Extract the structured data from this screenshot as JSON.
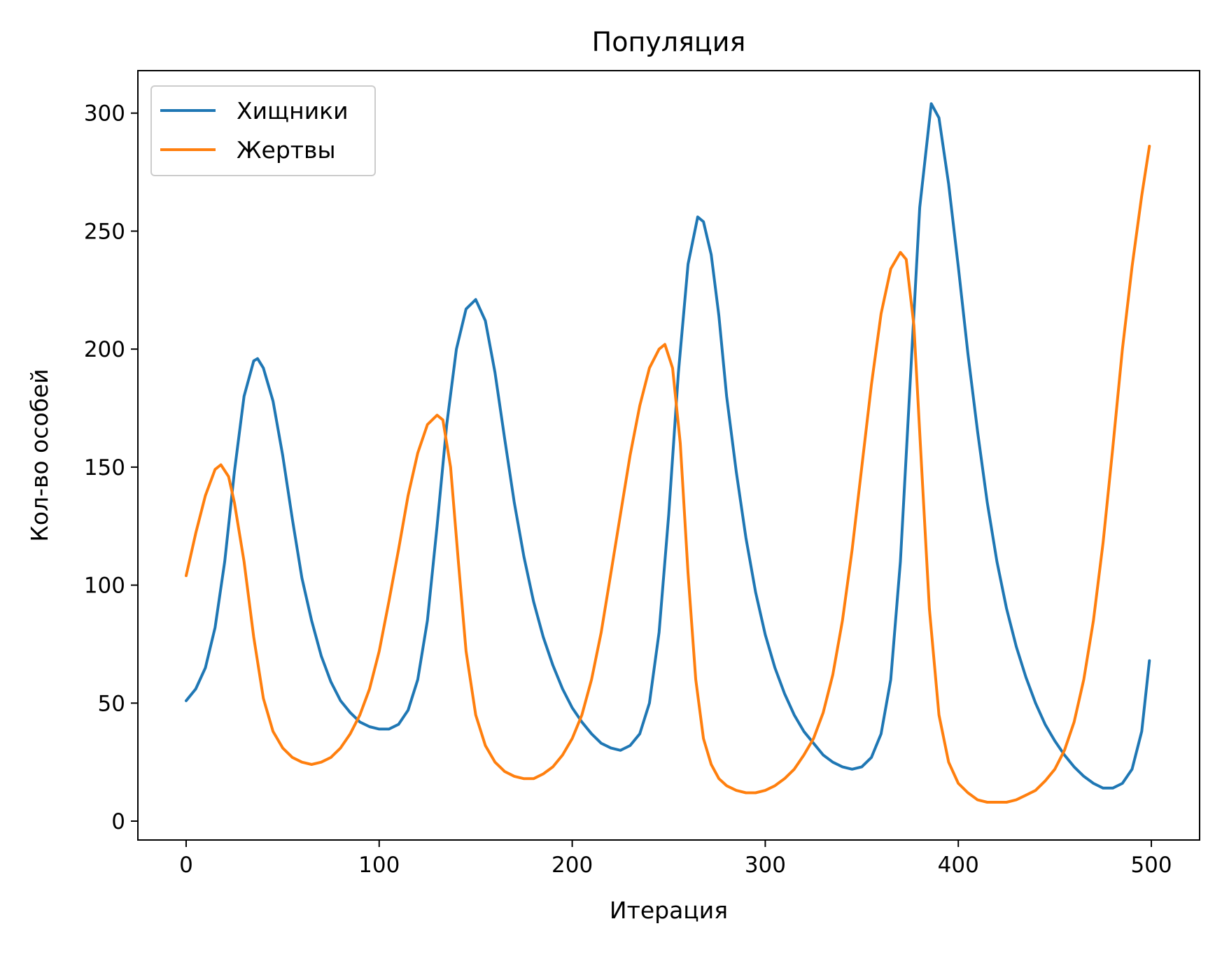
{
  "chart_data": {
    "type": "line",
    "title": "Популяция",
    "xlabel": "Итерация",
    "ylabel": "Кол-во особей",
    "xlim": [
      -25,
      525
    ],
    "ylim": [
      -8,
      318
    ],
    "xticks": [
      0,
      100,
      200,
      300,
      400,
      500
    ],
    "yticks": [
      0,
      50,
      100,
      150,
      200,
      250,
      300
    ],
    "grid": false,
    "legend_position": "upper-left",
    "series": [
      {
        "name": "Хищники",
        "color": "#1f77b4",
        "points": [
          [
            0,
            51
          ],
          [
            5,
            56
          ],
          [
            10,
            65
          ],
          [
            15,
            82
          ],
          [
            20,
            110
          ],
          [
            25,
            148
          ],
          [
            30,
            180
          ],
          [
            35,
            195
          ],
          [
            37,
            196
          ],
          [
            40,
            192
          ],
          [
            45,
            178
          ],
          [
            50,
            155
          ],
          [
            55,
            128
          ],
          [
            60,
            103
          ],
          [
            65,
            85
          ],
          [
            70,
            70
          ],
          [
            75,
            59
          ],
          [
            80,
            51
          ],
          [
            85,
            46
          ],
          [
            90,
            42
          ],
          [
            95,
            40
          ],
          [
            100,
            39
          ],
          [
            105,
            39
          ],
          [
            110,
            41
          ],
          [
            115,
            47
          ],
          [
            120,
            60
          ],
          [
            125,
            85
          ],
          [
            130,
            125
          ],
          [
            135,
            168
          ],
          [
            140,
            200
          ],
          [
            145,
            217
          ],
          [
            150,
            221
          ],
          [
            155,
            212
          ],
          [
            160,
            190
          ],
          [
            165,
            162
          ],
          [
            170,
            135
          ],
          [
            175,
            112
          ],
          [
            180,
            93
          ],
          [
            185,
            78
          ],
          [
            190,
            66
          ],
          [
            195,
            56
          ],
          [
            200,
            48
          ],
          [
            205,
            42
          ],
          [
            210,
            37
          ],
          [
            215,
            33
          ],
          [
            220,
            31
          ],
          [
            225,
            30
          ],
          [
            230,
            32
          ],
          [
            235,
            37
          ],
          [
            240,
            50
          ],
          [
            245,
            80
          ],
          [
            250,
            130
          ],
          [
            255,
            190
          ],
          [
            260,
            236
          ],
          [
            265,
            256
          ],
          [
            268,
            254
          ],
          [
            272,
            240
          ],
          [
            276,
            214
          ],
          [
            280,
            180
          ],
          [
            285,
            148
          ],
          [
            290,
            120
          ],
          [
            295,
            97
          ],
          [
            300,
            79
          ],
          [
            305,
            65
          ],
          [
            310,
            54
          ],
          [
            315,
            45
          ],
          [
            320,
            38
          ],
          [
            325,
            33
          ],
          [
            330,
            28
          ],
          [
            335,
            25
          ],
          [
            340,
            23
          ],
          [
            345,
            22
          ],
          [
            350,
            23
          ],
          [
            355,
            27
          ],
          [
            360,
            37
          ],
          [
            365,
            60
          ],
          [
            370,
            110
          ],
          [
            375,
            185
          ],
          [
            380,
            260
          ],
          [
            386,
            304
          ],
          [
            390,
            298
          ],
          [
            395,
            270
          ],
          [
            400,
            235
          ],
          [
            405,
            198
          ],
          [
            410,
            165
          ],
          [
            415,
            135
          ],
          [
            420,
            110
          ],
          [
            425,
            90
          ],
          [
            430,
            74
          ],
          [
            435,
            61
          ],
          [
            440,
            50
          ],
          [
            445,
            41
          ],
          [
            450,
            34
          ],
          [
            455,
            28
          ],
          [
            460,
            23
          ],
          [
            465,
            19
          ],
          [
            470,
            16
          ],
          [
            475,
            14
          ],
          [
            480,
            14
          ],
          [
            485,
            16
          ],
          [
            490,
            22
          ],
          [
            495,
            38
          ],
          [
            499,
            68
          ]
        ]
      },
      {
        "name": "Жертвы",
        "color": "#ff7f0e",
        "points": [
          [
            0,
            104
          ],
          [
            5,
            122
          ],
          [
            10,
            138
          ],
          [
            15,
            149
          ],
          [
            18,
            151
          ],
          [
            22,
            146
          ],
          [
            25,
            135
          ],
          [
            30,
            110
          ],
          [
            35,
            78
          ],
          [
            40,
            52
          ],
          [
            45,
            38
          ],
          [
            50,
            31
          ],
          [
            55,
            27
          ],
          [
            60,
            25
          ],
          [
            65,
            24
          ],
          [
            70,
            25
          ],
          [
            75,
            27
          ],
          [
            80,
            31
          ],
          [
            85,
            37
          ],
          [
            90,
            45
          ],
          [
            95,
            56
          ],
          [
            100,
            72
          ],
          [
            105,
            93
          ],
          [
            110,
            115
          ],
          [
            115,
            138
          ],
          [
            120,
            156
          ],
          [
            125,
            168
          ],
          [
            130,
            172
          ],
          [
            133,
            170
          ],
          [
            137,
            150
          ],
          [
            141,
            110
          ],
          [
            145,
            72
          ],
          [
            150,
            45
          ],
          [
            155,
            32
          ],
          [
            160,
            25
          ],
          [
            165,
            21
          ],
          [
            170,
            19
          ],
          [
            175,
            18
          ],
          [
            180,
            18
          ],
          [
            185,
            20
          ],
          [
            190,
            23
          ],
          [
            195,
            28
          ],
          [
            200,
            35
          ],
          [
            205,
            45
          ],
          [
            210,
            60
          ],
          [
            215,
            80
          ],
          [
            220,
            105
          ],
          [
            225,
            130
          ],
          [
            230,
            155
          ],
          [
            235,
            176
          ],
          [
            240,
            192
          ],
          [
            245,
            200
          ],
          [
            248,
            202
          ],
          [
            252,
            192
          ],
          [
            256,
            160
          ],
          [
            260,
            105
          ],
          [
            264,
            60
          ],
          [
            268,
            35
          ],
          [
            272,
            24
          ],
          [
            276,
            18
          ],
          [
            280,
            15
          ],
          [
            285,
            13
          ],
          [
            290,
            12
          ],
          [
            295,
            12
          ],
          [
            300,
            13
          ],
          [
            305,
            15
          ],
          [
            310,
            18
          ],
          [
            315,
            22
          ],
          [
            320,
            28
          ],
          [
            325,
            35
          ],
          [
            330,
            46
          ],
          [
            335,
            62
          ],
          [
            340,
            85
          ],
          [
            345,
            115
          ],
          [
            350,
            150
          ],
          [
            355,
            185
          ],
          [
            360,
            215
          ],
          [
            365,
            234
          ],
          [
            370,
            241
          ],
          [
            373,
            238
          ],
          [
            377,
            210
          ],
          [
            381,
            150
          ],
          [
            385,
            90
          ],
          [
            390,
            45
          ],
          [
            395,
            25
          ],
          [
            400,
            16
          ],
          [
            405,
            12
          ],
          [
            410,
            9
          ],
          [
            415,
            8
          ],
          [
            420,
            8
          ],
          [
            425,
            8
          ],
          [
            430,
            9
          ],
          [
            435,
            11
          ],
          [
            440,
            13
          ],
          [
            445,
            17
          ],
          [
            450,
            22
          ],
          [
            455,
            30
          ],
          [
            460,
            42
          ],
          [
            465,
            60
          ],
          [
            470,
            85
          ],
          [
            475,
            118
          ],
          [
            480,
            158
          ],
          [
            485,
            200
          ],
          [
            490,
            235
          ],
          [
            495,
            265
          ],
          [
            499,
            286
          ]
        ]
      }
    ]
  }
}
